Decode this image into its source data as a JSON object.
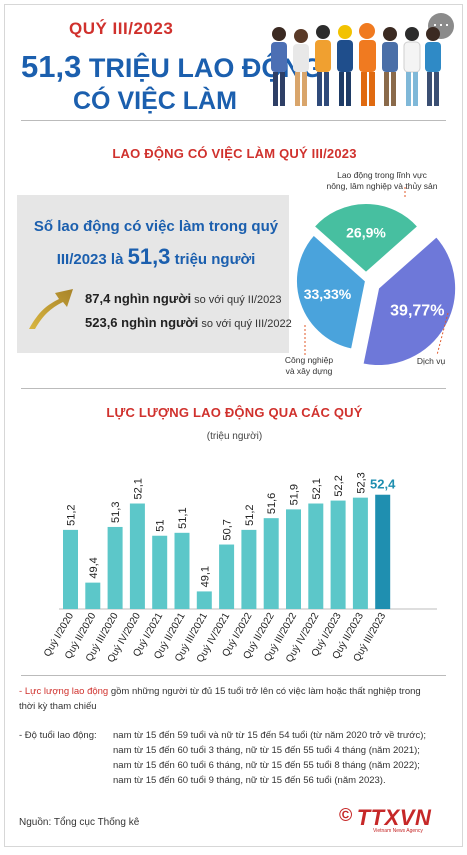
{
  "header": {
    "quarter": "QUÝ III/2023",
    "headline_number": "51,3",
    "headline_rest": " TRIỆU LAO ĐỘNG",
    "headline_line2": "CÓ VIỆC LÀM"
  },
  "section1_title": "LAO ĐỘNG CÓ VIỆC LÀM QUÝ III/2023",
  "summary": {
    "title_pre": "Số lao động có việc làm trong quý III/2023 là ",
    "title_value": "51,3",
    "title_post": " triệu người",
    "stat1_value": "87,4 nghìn người",
    "stat1_text": " so với quý II/2023",
    "stat2_value": "523,6 nghìn người",
    "stat2_text": " so với quý III/2022"
  },
  "pie": {
    "label_agri_line1": "Lao động trong lĩnh vực",
    "label_agri_line2": "nông, lâm nghiệp và thủy sản",
    "label_industry_line1": "Công nghiệp",
    "label_industry_line2": "và xây dựng",
    "label_services": "Dịch vụ"
  },
  "section2_title": "LỰC LƯỢNG LAO ĐỘNG QUA CÁC QUÝ",
  "section2_unit": "(triệu người)",
  "colors": {
    "accent_red": "#d0312d",
    "accent_blue": "#1b5fae",
    "bar": "#5cc7c9",
    "bar_highlight": "#1f8fb0",
    "pie_agri": "#47bfa0",
    "pie_industry": "#4aa3dc",
    "pie_services": "#6e78d9"
  },
  "chart_data": [
    {
      "type": "pie",
      "title": "",
      "slices": [
        {
          "name": "Lao động trong lĩnh vực nông, lâm nghiệp và thủy sản",
          "label": "26,9%",
          "value": 26.9
        },
        {
          "name": "Dịch vụ",
          "label": "39,77%",
          "value": 39.77
        },
        {
          "name": "Công nghiệp và xây dựng",
          "label": "33,33%",
          "value": 33.33
        }
      ]
    },
    {
      "type": "bar",
      "title": "",
      "ylabel": "(triệu người)",
      "categories": [
        "Quý I/2020",
        "Quý II/2020",
        "Quý III/2020",
        "Quý IV/2020",
        "Quý I/2021",
        "Quý II/2021",
        "Quý III/2021",
        "Quý IV/2021",
        "Quý I/2022",
        "Quý II/2022",
        "Quý III/2022",
        "Quý IV/2022",
        "Quý I/2023",
        "Quý II/2023",
        "Quý III/2023"
      ],
      "values": [
        51.2,
        49.4,
        51.3,
        52.1,
        51,
        51.1,
        49.1,
        50.7,
        51.2,
        51.6,
        51.9,
        52.1,
        52.2,
        52.3,
        52.4
      ],
      "value_labels": [
        "51,2",
        "49,4",
        "51,3",
        "52,1",
        "51",
        "51,1",
        "49,1",
        "50,7",
        "51,2",
        "51,6",
        "51,9",
        "52,1",
        "52,2",
        "52,3",
        "52,4"
      ],
      "ylim": [
        48.5,
        52.8
      ],
      "grid": false
    }
  ],
  "notes": {
    "line1_red": "Lực lượng lao động",
    "line1_rest": " gồm những người từ đủ 15 tuổi trở lên có việc làm hoặc thất nghiệp trong",
    "line1b": "thời kỳ tham chiếu",
    "age_label": "- Độ tuổi lao động:",
    "age_lines": [
      "nam từ 15 đến 59 tuổi và nữ từ 15 đến 54 tuổi (từ năm 2020 trở về trước);",
      "nam từ 15 đến 60 tuổi 3 tháng, nữ từ 15 đến 55 tuổi 4 tháng (năm 2021);",
      "nam từ 15 đến 60 tuổi 6 tháng, nữ từ 15 đến 55 tuổi 8 tháng (năm 2022);",
      "nam từ 15 đến 60 tuổi 9 tháng, nữ từ 15 đến 56 tuổi  (năm 2023)."
    ]
  },
  "source": "Nguồn: Tổng cục Thống kê",
  "logo": {
    "copyright": "©",
    "text": "TTXVN",
    "subtext": "Vietnam News Agency"
  }
}
